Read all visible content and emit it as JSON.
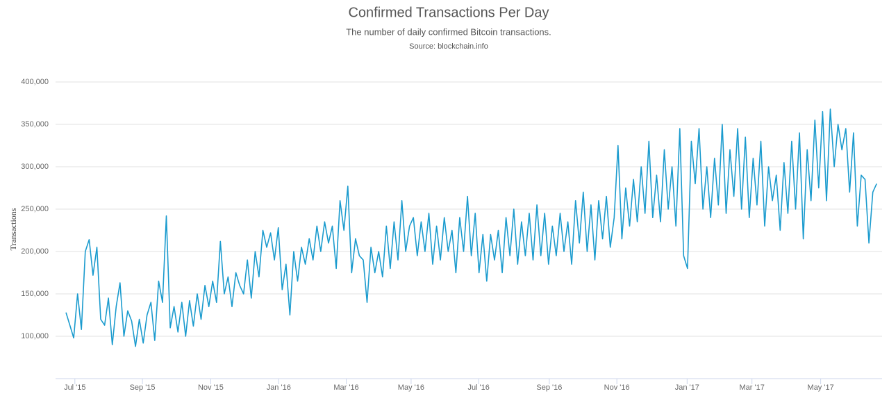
{
  "chart_data": {
    "type": "line",
    "title": "Confirmed Transactions Per Day",
    "subtitle": "The number of daily confirmed Bitcoin transactions.",
    "source": "Source: blockchain.info",
    "ylabel": "Transactions",
    "series": [
      {
        "name": "Transactions",
        "color": "#1b9bce",
        "values": [
          128000,
          113000,
          98000,
          150000,
          108000,
          200000,
          214000,
          172000,
          205000,
          120000,
          113000,
          145000,
          90000,
          135000,
          163000,
          100000,
          130000,
          118000,
          88000,
          120000,
          92000,
          125000,
          140000,
          95000,
          165000,
          140000,
          242000,
          110000,
          135000,
          105000,
          140000,
          100000,
          142000,
          112000,
          150000,
          120000,
          160000,
          135000,
          165000,
          140000,
          212000,
          150000,
          170000,
          135000,
          175000,
          160000,
          150000,
          190000,
          145000,
          200000,
          170000,
          225000,
          205000,
          222000,
          190000,
          228000,
          155000,
          185000,
          125000,
          200000,
          165000,
          205000,
          185000,
          215000,
          190000,
          230000,
          200000,
          235000,
          210000,
          230000,
          180000,
          260000,
          225000,
          277000,
          175000,
          215000,
          195000,
          190000,
          140000,
          205000,
          175000,
          200000,
          170000,
          230000,
          180000,
          235000,
          190000,
          260000,
          200000,
          230000,
          240000,
          195000,
          235000,
          200000,
          245000,
          185000,
          230000,
          190000,
          240000,
          200000,
          225000,
          175000,
          240000,
          200000,
          265000,
          195000,
          245000,
          175000,
          220000,
          165000,
          220000,
          190000,
          225000,
          175000,
          240000,
          195000,
          250000,
          185000,
          235000,
          195000,
          245000,
          190000,
          255000,
          195000,
          245000,
          185000,
          230000,
          195000,
          245000,
          200000,
          235000,
          185000,
          260000,
          210000,
          270000,
          200000,
          255000,
          190000,
          260000,
          215000,
          265000,
          205000,
          240000,
          325000,
          215000,
          275000,
          230000,
          285000,
          235000,
          300000,
          245000,
          330000,
          240000,
          290000,
          235000,
          320000,
          250000,
          300000,
          230000,
          345000,
          195000,
          180000,
          330000,
          280000,
          345000,
          250000,
          300000,
          240000,
          310000,
          255000,
          350000,
          245000,
          320000,
          265000,
          345000,
          250000,
          335000,
          240000,
          310000,
          255000,
          330000,
          230000,
          300000,
          260000,
          290000,
          225000,
          305000,
          245000,
          330000,
          250000,
          340000,
          215000,
          320000,
          260000,
          355000,
          275000,
          365000,
          260000,
          368000,
          300000,
          350000,
          320000,
          345000,
          270000,
          340000,
          230000,
          290000,
          285000,
          210000,
          270000,
          280000
        ]
      }
    ],
    "xlim": [
      -2.7,
      211.4
    ],
    "xticks": [
      {
        "value": 2.3,
        "label": "Jul '15"
      },
      {
        "value": 19.8,
        "label": "Sep '15"
      },
      {
        "value": 37.5,
        "label": "Nov '15"
      },
      {
        "value": 55.1,
        "label": "Jan '16"
      },
      {
        "value": 72.6,
        "label": "Mar '16"
      },
      {
        "value": 89.4,
        "label": "May '16"
      },
      {
        "value": 106.9,
        "label": "Jul '16"
      },
      {
        "value": 125.2,
        "label": "Sep '16"
      },
      {
        "value": 142.7,
        "label": "Nov '16"
      },
      {
        "value": 160.9,
        "label": "Jan '17"
      },
      {
        "value": 177.7,
        "label": "Mar '17"
      },
      {
        "value": 195.5,
        "label": "May '17"
      }
    ],
    "ylim": [
      50000,
      400000
    ],
    "yticks": [
      {
        "value": 100000,
        "label": "100,000"
      },
      {
        "value": 150000,
        "label": "150,000"
      },
      {
        "value": 200000,
        "label": "200,000"
      },
      {
        "value": 250000,
        "label": "250,000"
      },
      {
        "value": 300000,
        "label": "300,000"
      },
      {
        "value": 350000,
        "label": "350,000"
      },
      {
        "value": 400000,
        "label": "400,000"
      }
    ],
    "grid": true
  }
}
